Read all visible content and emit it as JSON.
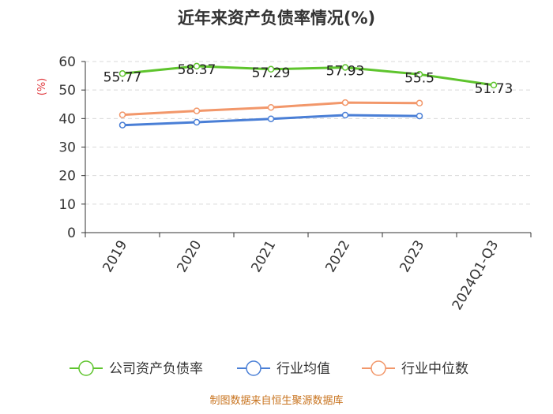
{
  "chart_data": {
    "type": "line",
    "title": "近年来资产负债率情况(%)",
    "ylabel": "(%)",
    "categories": [
      "2019",
      "2020",
      "2021",
      "2022",
      "2023",
      "2024Q1-Q3"
    ],
    "ylim": [
      0,
      60
    ],
    "yticks": [
      0,
      10,
      20,
      30,
      40,
      50,
      60
    ],
    "grid": true,
    "legend_position": "bottom",
    "series": [
      {
        "name": "公司资产负债率",
        "color": "#5ec42d",
        "values": [
          55.77,
          58.37,
          57.29,
          57.93,
          55.5,
          51.73
        ],
        "labels": [
          "55.77",
          "58.37",
          "57.29",
          "57.93",
          "55.5",
          "51.73"
        ]
      },
      {
        "name": "行业均值",
        "color": "#4a7fd6",
        "values": [
          37.7,
          38.7,
          39.9,
          41.2,
          40.9,
          null
        ]
      },
      {
        "name": "行业中位数",
        "color": "#f2976a",
        "values": [
          41.3,
          42.7,
          43.9,
          45.6,
          45.4,
          null
        ]
      }
    ],
    "source": "制图数据来自恒生聚源数据库"
  }
}
